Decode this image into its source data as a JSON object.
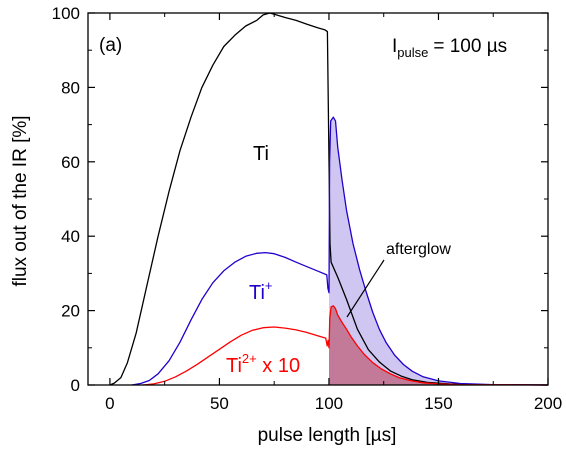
{
  "chart_data": {
    "type": "line",
    "title": "",
    "panel_label": "(a)",
    "xlabel": "pulse length [µs]",
    "ylabel": "flux out of the IR [%]",
    "xlim": [
      -10,
      200
    ],
    "ylim": [
      0,
      100
    ],
    "xticks": [
      0,
      50,
      100,
      150,
      200
    ],
    "yticks": [
      0,
      20,
      40,
      60,
      80,
      100
    ],
    "grid": false,
    "legend": "none",
    "pulse_annotation": {
      "symbol": "I",
      "subscript": "pulse",
      "value": "= 100 µs"
    },
    "afterglow_label": "afterglow",
    "series": [
      {
        "name": "Ti",
        "label_parts": {
          "base": "Ti",
          "sup": "",
          "suffix": ""
        },
        "color": "#000000",
        "fill": "none",
        "points": [
          [
            0,
            0
          ],
          [
            2,
            0.5
          ],
          [
            5,
            2
          ],
          [
            8,
            6
          ],
          [
            12,
            14
          ],
          [
            17,
            27
          ],
          [
            22,
            40
          ],
          [
            27,
            52
          ],
          [
            32,
            63
          ],
          [
            37,
            72
          ],
          [
            42,
            80
          ],
          [
            47,
            86
          ],
          [
            52,
            91
          ],
          [
            57,
            94
          ],
          [
            62,
            96.5
          ],
          [
            67,
            98
          ],
          [
            70,
            99.5
          ],
          [
            73,
            100
          ],
          [
            76,
            99.5
          ],
          [
            80,
            98.8
          ],
          [
            85,
            98
          ],
          [
            90,
            97
          ],
          [
            95,
            96
          ],
          [
            98,
            95.5
          ],
          [
            99.3,
            95
          ],
          [
            100,
            60
          ],
          [
            100.5,
            38
          ],
          [
            101,
            33
          ],
          [
            104,
            29
          ],
          [
            108,
            23
          ],
          [
            113,
            15
          ],
          [
            118,
            9.5
          ],
          [
            123,
            6.2
          ],
          [
            128,
            3.8
          ],
          [
            133,
            2.4
          ],
          [
            138,
            1.4
          ],
          [
            145,
            0.7
          ],
          [
            155,
            0.3
          ],
          [
            170,
            0.1
          ],
          [
            200,
            0
          ]
        ]
      },
      {
        "name": "Ti+",
        "label_parts": {
          "base": "Ti",
          "sup": "+",
          "suffix": ""
        },
        "color": "#2200cc",
        "fill": "#cfc6f2",
        "points": [
          [
            10,
            0
          ],
          [
            14,
            0.4
          ],
          [
            18,
            1.2
          ],
          [
            22,
            3
          ],
          [
            27,
            6.5
          ],
          [
            32,
            11.5
          ],
          [
            37,
            17.5
          ],
          [
            42,
            23
          ],
          [
            47,
            27.5
          ],
          [
            52,
            30.7
          ],
          [
            57,
            33
          ],
          [
            62,
            34.6
          ],
          [
            67,
            35.4
          ],
          [
            71,
            35.6
          ],
          [
            75,
            35.3
          ],
          [
            80,
            34.3
          ],
          [
            85,
            33
          ],
          [
            90,
            31.8
          ],
          [
            95,
            30.6
          ],
          [
            99,
            29.6
          ],
          [
            99.5,
            26
          ],
          [
            100,
            24.8
          ],
          [
            100.3,
            60
          ],
          [
            100.8,
            71
          ],
          [
            102,
            72
          ],
          [
            103,
            71
          ],
          [
            104,
            64
          ],
          [
            106,
            55
          ],
          [
            108,
            47
          ],
          [
            111,
            38
          ],
          [
            114,
            31
          ],
          [
            117,
            25
          ],
          [
            120,
            19.5
          ],
          [
            123,
            15
          ],
          [
            126,
            11.5
          ],
          [
            130,
            8
          ],
          [
            134,
            5.5
          ],
          [
            138,
            3.7
          ],
          [
            143,
            2.2
          ],
          [
            150,
            1.1
          ],
          [
            160,
            0.4
          ],
          [
            175,
            0.1
          ],
          [
            200,
            0
          ]
        ]
      },
      {
        "name": "Ti2+ x 10",
        "label_parts": {
          "base": "Ti",
          "sup": "2+",
          "suffix": " x 10"
        },
        "color": "#ff0000",
        "fill": "#c27a98",
        "points": [
          [
            15,
            0
          ],
          [
            20,
            0.3
          ],
          [
            25,
            1
          ],
          [
            30,
            2.2
          ],
          [
            35,
            3.8
          ],
          [
            40,
            5.6
          ],
          [
            45,
            7.6
          ],
          [
            50,
            9.6
          ],
          [
            55,
            11.6
          ],
          [
            60,
            13.4
          ],
          [
            65,
            14.7
          ],
          [
            70,
            15.4
          ],
          [
            75,
            15.6
          ],
          [
            80,
            15.3
          ],
          [
            85,
            14.8
          ],
          [
            90,
            14.1
          ],
          [
            95,
            13.2
          ],
          [
            98.5,
            12.6
          ],
          [
            99.2,
            10.5
          ],
          [
            99.6,
            12
          ],
          [
            100,
            10
          ],
          [
            100.4,
            18
          ],
          [
            101,
            21
          ],
          [
            102,
            21.3
          ],
          [
            103,
            20.5
          ],
          [
            104,
            18.8
          ],
          [
            106,
            16.8
          ],
          [
            108,
            15
          ],
          [
            110,
            13
          ],
          [
            113,
            10.5
          ],
          [
            116,
            8.3
          ],
          [
            120,
            6
          ],
          [
            124,
            4.3
          ],
          [
            128,
            3
          ],
          [
            132,
            2
          ],
          [
            137,
            1.2
          ],
          [
            143,
            0.6
          ],
          [
            150,
            0.3
          ],
          [
            160,
            0.1
          ],
          [
            200,
            0
          ]
        ]
      }
    ]
  }
}
